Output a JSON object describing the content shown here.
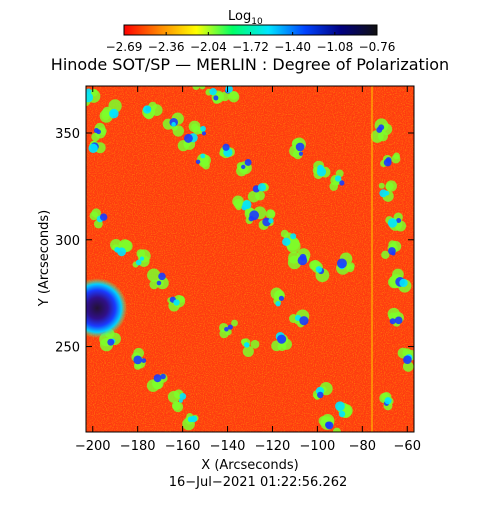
{
  "title": "Hinode SOT/SP — MERLIN : Degree of Polarization",
  "colorbar": {
    "label_main": "Log",
    "label_sub": "10",
    "ticks": [
      "−2.69",
      "−2.36",
      "−2.04",
      "−1.72",
      "−1.40",
      "−1.08",
      "−0.76"
    ],
    "colors": [
      "#ff0000",
      "#ff8800",
      "#ffff00",
      "#00ff66",
      "#00e5ff",
      "#0044ff",
      "#000080",
      "#111111"
    ]
  },
  "x_axis": {
    "label": "X (Arcseconds)",
    "range": [
      -203,
      -57
    ],
    "ticks": [
      {
        "value": -200,
        "label": "−200"
      },
      {
        "value": -180,
        "label": "−180"
      },
      {
        "value": -160,
        "label": "−160"
      },
      {
        "value": -140,
        "label": "−140"
      },
      {
        "value": -120,
        "label": "−120"
      },
      {
        "value": -100,
        "label": "−100"
      },
      {
        "value": -80,
        "label": "−80"
      },
      {
        "value": -60,
        "label": "−60"
      }
    ]
  },
  "y_axis": {
    "label": "Y (Arcseconds)",
    "range": [
      210,
      372
    ],
    "ticks": [
      {
        "value": 250,
        "label": "250"
      },
      {
        "value": 300,
        "label": "300"
      },
      {
        "value": 350,
        "label": "350"
      }
    ]
  },
  "timestamp": "16−Jul−2021 01:22:56.262",
  "map": {
    "background_color": "#ff3a10",
    "sunspot": {
      "x": -198,
      "y": 268
    }
  }
}
